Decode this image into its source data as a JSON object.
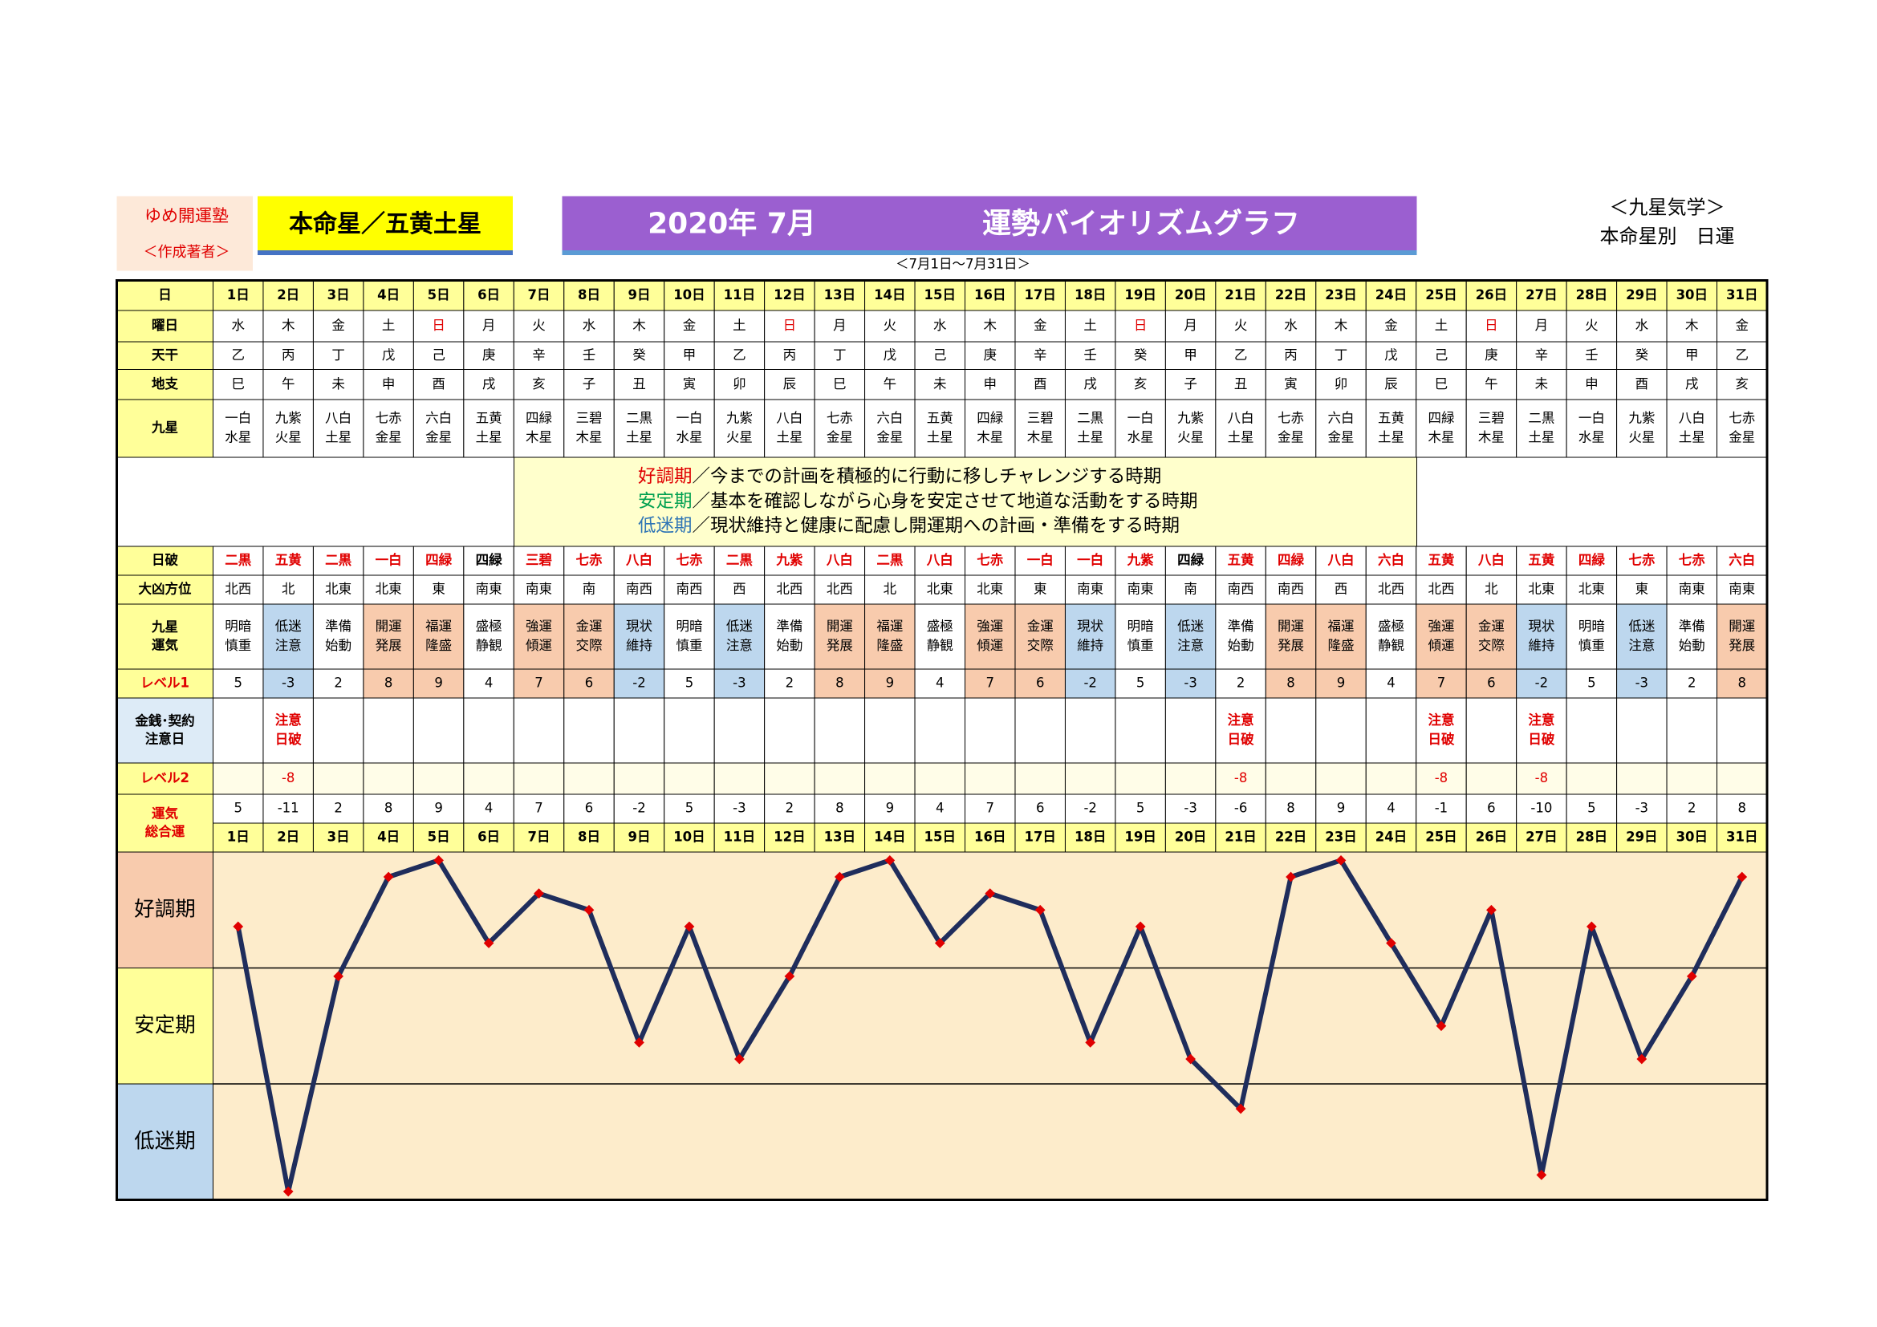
{
  "header": {
    "school": "ゆめ開運塾",
    "author": "＜作成著者＞",
    "honmei": "本命星／五黄土星",
    "title_date": "2020年 7月",
    "title": "運勢バイオリズムグラフ",
    "period": "＜7月1日～7月31日＞",
    "category": "＜九星気学＞",
    "subtitle": "本命星別　日運"
  },
  "table": {
    "labels": {
      "day": "日",
      "weekday": "曜日",
      "tenkan": "天干",
      "chishi": "地支",
      "kyusei": "九星",
      "hahi": "日破",
      "daikyo": "大凶方位",
      "unki": [
        "九星",
        "運気"
      ],
      "level1": "レベル1",
      "kinsen": [
        "金銭･契約",
        "注意日"
      ],
      "level2": "レベル2",
      "total": [
        "運気",
        "総合運"
      ]
    },
    "days": [
      "1日",
      "2日",
      "3日",
      "4日",
      "5日",
      "6日",
      "7日",
      "8日",
      "9日",
      "10日",
      "11日",
      "12日",
      "13日",
      "14日",
      "15日",
      "16日",
      "17日",
      "18日",
      "19日",
      "20日",
      "21日",
      "22日",
      "23日",
      "24日",
      "25日",
      "26日",
      "27日",
      "28日",
      "29日",
      "30日",
      "31日"
    ],
    "weekdays": [
      "水",
      "木",
      "金",
      "土",
      "日",
      "月",
      "火",
      "水",
      "木",
      "金",
      "土",
      "日",
      "月",
      "火",
      "水",
      "木",
      "金",
      "土",
      "日",
      "月",
      "火",
      "水",
      "木",
      "金",
      "土",
      "日",
      "月",
      "火",
      "水",
      "木",
      "金"
    ],
    "weekday_colors": [
      "#000",
      "#000",
      "#000",
      "#000",
      "#e00000",
      "#000",
      "#000",
      "#000",
      "#000",
      "#000",
      "#000",
      "#e00000",
      "#000",
      "#000",
      "#000",
      "#000",
      "#000",
      "#000",
      "#e00000",
      "#000",
      "#000",
      "#000",
      "#000",
      "#000",
      "#000",
      "#e00000",
      "#000",
      "#000",
      "#000",
      "#000",
      "#000"
    ],
    "tenkan": [
      "乙",
      "丙",
      "丁",
      "戊",
      "己",
      "庚",
      "辛",
      "壬",
      "癸",
      "甲",
      "乙",
      "丙",
      "丁",
      "戊",
      "己",
      "庚",
      "辛",
      "壬",
      "癸",
      "甲",
      "乙",
      "丙",
      "丁",
      "戊",
      "己",
      "庚",
      "辛",
      "壬",
      "癸",
      "甲",
      "乙"
    ],
    "chishi": [
      "巳",
      "午",
      "未",
      "申",
      "酉",
      "戌",
      "亥",
      "子",
      "丑",
      "寅",
      "卯",
      "辰",
      "巳",
      "午",
      "未",
      "申",
      "酉",
      "戌",
      "亥",
      "子",
      "丑",
      "寅",
      "卯",
      "辰",
      "巳",
      "午",
      "未",
      "申",
      "酉",
      "戌",
      "亥"
    ],
    "kyusei": [
      [
        "一白",
        "水星"
      ],
      [
        "九紫",
        "火星"
      ],
      [
        "八白",
        "土星"
      ],
      [
        "七赤",
        "金星"
      ],
      [
        "六白",
        "金星"
      ],
      [
        "五黄",
        "土星"
      ],
      [
        "四緑",
        "木星"
      ],
      [
        "三碧",
        "木星"
      ],
      [
        "二黒",
        "土星"
      ],
      [
        "一白",
        "水星"
      ],
      [
        "九紫",
        "火星"
      ],
      [
        "八白",
        "土星"
      ],
      [
        "七赤",
        "金星"
      ],
      [
        "六白",
        "金星"
      ],
      [
        "五黄",
        "土星"
      ],
      [
        "四緑",
        "木星"
      ],
      [
        "三碧",
        "木星"
      ],
      [
        "二黒",
        "土星"
      ],
      [
        "一白",
        "水星"
      ],
      [
        "九紫",
        "火星"
      ],
      [
        "八白",
        "土星"
      ],
      [
        "七赤",
        "金星"
      ],
      [
        "六白",
        "金星"
      ],
      [
        "五黄",
        "土星"
      ],
      [
        "四緑",
        "木星"
      ],
      [
        "三碧",
        "木星"
      ],
      [
        "二黒",
        "土星"
      ],
      [
        "一白",
        "水星"
      ],
      [
        "九紫",
        "火星"
      ],
      [
        "八白",
        "土星"
      ],
      [
        "七赤",
        "金星"
      ]
    ],
    "notes": [
      {
        "term": "好調期",
        "color": "#e00000",
        "text": "／今までの計画を積極的に行動に移しチャレンジする時期"
      },
      {
        "term": "安定期",
        "color": "#00a050",
        "text": "／基本を確認しながら心身を安定させて地道な活動をする時期"
      },
      {
        "term": "低迷期",
        "color": "#2f75b5",
        "text": "／現状維持と健康に配慮し開運期への計画・準備をする時期"
      }
    ],
    "hahi": [
      "二黒",
      "五黄",
      "二黒",
      "一白",
      "四緑",
      "四緑",
      "三碧",
      "七赤",
      "八白",
      "七赤",
      "二黒",
      "九紫",
      "八白",
      "二黒",
      "八白",
      "七赤",
      "一白",
      "一白",
      "九紫",
      "四緑",
      "五黄",
      "四緑",
      "八白",
      "六白",
      "五黄",
      "八白",
      "五黄",
      "四緑",
      "七赤",
      "七赤",
      "六白"
    ],
    "hahi_colors": [
      "#e00000",
      "#e00000",
      "#e00000",
      "#e00000",
      "#e00000",
      "#000",
      "#e00000",
      "#e00000",
      "#e00000",
      "#e00000",
      "#e00000",
      "#e00000",
      "#e00000",
      "#e00000",
      "#e00000",
      "#e00000",
      "#e00000",
      "#e00000",
      "#e00000",
      "#000",
      "#e00000",
      "#e00000",
      "#e00000",
      "#e00000",
      "#e00000",
      "#e00000",
      "#e00000",
      "#e00000",
      "#e00000",
      "#e00000",
      "#e00000"
    ],
    "daikyo": [
      "北西",
      "北",
      "北東",
      "北東",
      "東",
      "南東",
      "南東",
      "南",
      "南西",
      "南西",
      "西",
      "北西",
      "北西",
      "北",
      "北東",
      "北東",
      "東",
      "南東",
      "南東",
      "南",
      "南西",
      "南西",
      "西",
      "北西",
      "北西",
      "北",
      "北東",
      "北東",
      "東",
      "南東",
      "南東"
    ],
    "unki": [
      [
        "明暗",
        "慎重"
      ],
      [
        "低迷",
        "注意"
      ],
      [
        "準備",
        "始動"
      ],
      [
        "開運",
        "発展"
      ],
      [
        "福運",
        "隆盛"
      ],
      [
        "盛極",
        "静観"
      ],
      [
        "強運",
        "傾運"
      ],
      [
        "金運",
        "交際"
      ],
      [
        "現状",
        "維持"
      ],
      [
        "明暗",
        "慎重"
      ],
      [
        "低迷",
        "注意"
      ],
      [
        "準備",
        "始動"
      ],
      [
        "開運",
        "発展"
      ],
      [
        "福運",
        "隆盛"
      ],
      [
        "盛極",
        "静観"
      ],
      [
        "強運",
        "傾運"
      ],
      [
        "金運",
        "交際"
      ],
      [
        "現状",
        "維持"
      ],
      [
        "明暗",
        "慎重"
      ],
      [
        "低迷",
        "注意"
      ],
      [
        "準備",
        "始動"
      ],
      [
        "開運",
        "発展"
      ],
      [
        "福運",
        "隆盛"
      ],
      [
        "盛極",
        "静観"
      ],
      [
        "強運",
        "傾運"
      ],
      [
        "金運",
        "交際"
      ],
      [
        "現状",
        "維持"
      ],
      [
        "明暗",
        "慎重"
      ],
      [
        "低迷",
        "注意"
      ],
      [
        "準備",
        "始動"
      ],
      [
        "開運",
        "発展"
      ]
    ],
    "level1": [
      5,
      -3,
      2,
      8,
      9,
      4,
      7,
      6,
      -2,
      5,
      -3,
      2,
      8,
      9,
      4,
      7,
      6,
      -2,
      5,
      -3,
      2,
      8,
      9,
      4,
      7,
      6,
      -2,
      5,
      -3,
      2,
      8
    ],
    "kinsen": [
      null,
      [
        "注意",
        "日破"
      ],
      null,
      null,
      null,
      null,
      null,
      null,
      null,
      null,
      null,
      null,
      null,
      null,
      null,
      null,
      null,
      null,
      null,
      null,
      [
        "注意",
        "日破"
      ],
      null,
      null,
      null,
      [
        "注意",
        "日破"
      ],
      null,
      [
        "注意",
        "日破"
      ],
      null,
      null,
      null,
      null
    ],
    "level2": [
      null,
      -8,
      null,
      null,
      null,
      null,
      null,
      null,
      null,
      null,
      null,
      null,
      null,
      null,
      null,
      null,
      null,
      null,
      null,
      null,
      -8,
      null,
      null,
      null,
      -8,
      null,
      -8,
      null,
      null,
      null,
      null
    ]
  },
  "chart_data": {
    "type": "line",
    "values": [
      5,
      -11,
      2,
      8,
      9,
      4,
      7,
      6,
      -2,
      5,
      -3,
      2,
      8,
      9,
      4,
      7,
      6,
      -2,
      5,
      -3,
      -6,
      8,
      9,
      4,
      -1,
      6,
      -10,
      5,
      -3,
      2,
      8
    ],
    "color": "#1f2d5c",
    "marker_color": "#e00000",
    "background": "#fdeccb",
    "ylim": [
      -11.5,
      9.5
    ],
    "band_edges": [
      2.5,
      -4.5
    ],
    "bands": [
      {
        "label": "好調期",
        "color": "#f8cbad"
      },
      {
        "label": "安定期",
        "color": "#ffff99"
      },
      {
        "label": "低迷期",
        "color": "#bdd7ee"
      }
    ]
  }
}
